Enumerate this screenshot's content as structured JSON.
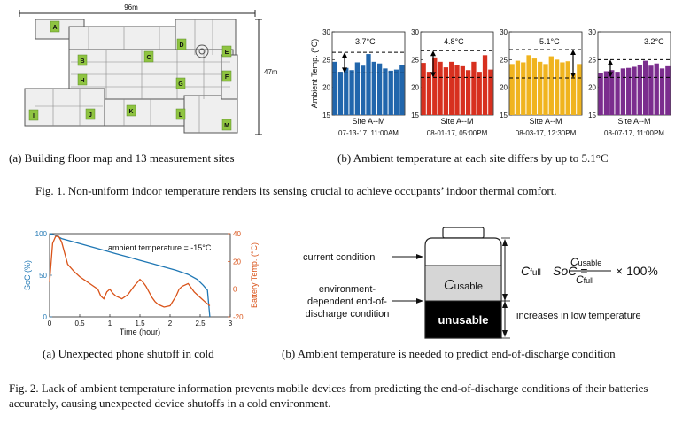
{
  "fig1": {
    "floorplan": {
      "width_label": "96m",
      "height_label": "47m",
      "sites": [
        "A",
        "B",
        "C",
        "D",
        "E",
        "F",
        "G",
        "H",
        "I",
        "J",
        "K",
        "L",
        "M"
      ]
    },
    "sub_a": "(a) Building floor map and 13 measurement sites",
    "sub_b": "(b) Ambient temperature at each site differs by up to 5.1°C",
    "caption": "Fig. 1.  Non-uniform indoor temperature renders its sensing crucial to achieve occupants’ indoor thermal comfort.",
    "ylabel": "Ambient Temp. (°C)"
  },
  "chart_data": [
    {
      "type": "bar",
      "title": "",
      "xlabel": "Site A--M",
      "ylabel": "Ambient Temp. (°C)",
      "ylim": [
        15,
        30
      ],
      "yticks": [
        15,
        20,
        25,
        30
      ],
      "categories": [
        "A",
        "B",
        "C",
        "D",
        "E",
        "F",
        "G",
        "H",
        "I",
        "J",
        "K",
        "L",
        "M"
      ],
      "values": [
        24.6,
        22.8,
        23.5,
        23.1,
        24.5,
        23.9,
        26.0,
        24.6,
        24.3,
        23.4,
        23.0,
        23.2,
        24.0
      ],
      "color": "#2166ac",
      "annotation": "3.7°C",
      "timestamp": "07-13-17, 11:00AM",
      "dashed_high": 26.3,
      "dashed_low": 22.6
    },
    {
      "type": "bar",
      "title": "",
      "xlabel": "Site A--M",
      "ylabel": "",
      "ylim": [
        15,
        30
      ],
      "yticks": [
        15,
        20,
        25,
        30
      ],
      "categories": [
        "A",
        "B",
        "C",
        "D",
        "E",
        "F",
        "G",
        "H",
        "I",
        "J",
        "K",
        "L",
        "M"
      ],
      "values": [
        24.4,
        22.8,
        25.4,
        24.6,
        23.6,
        24.6,
        24.0,
        23.8,
        23.1,
        24.6,
        22.8,
        25.8,
        23.2
      ],
      "color": "#d7301f",
      "annotation": "4.8°C",
      "timestamp": "08-01-17, 05:00PM",
      "dashed_high": 26.6,
      "dashed_low": 21.8
    },
    {
      "type": "bar",
      "title": "",
      "xlabel": "Site A--M",
      "ylabel": "",
      "ylim": [
        15,
        30
      ],
      "yticks": [
        15,
        20,
        25,
        30
      ],
      "categories": [
        "A",
        "B",
        "C",
        "D",
        "E",
        "F",
        "G",
        "H",
        "I",
        "J",
        "K",
        "L",
        "M"
      ],
      "values": [
        24.2,
        24.8,
        24.5,
        25.8,
        25.2,
        24.6,
        24.2,
        25.6,
        25.0,
        24.5,
        24.7,
        22.4,
        24.2
      ],
      "color": "#f0b41f",
      "annotation": "5.1°C",
      "timestamp": "08-03-17, 12:30PM",
      "dashed_high": 26.8,
      "dashed_low": 21.7
    },
    {
      "type": "bar",
      "title": "",
      "xlabel": "Site A--M",
      "ylabel": "",
      "ylim": [
        15,
        30
      ],
      "yticks": [
        15,
        20,
        25,
        30
      ],
      "categories": [
        "A",
        "B",
        "C",
        "D",
        "E",
        "F",
        "G",
        "H",
        "I",
        "J",
        "K",
        "L",
        "M"
      ],
      "values": [
        22.5,
        22.9,
        23.1,
        22.8,
        23.4,
        23.5,
        23.7,
        24.1,
        24.8,
        23.9,
        24.3,
        23.4,
        23.8
      ],
      "color": "#7b2d8e",
      "annotation": "3.2°C",
      "timestamp": "08-07-17, 11:00PM",
      "dashed_high": 25.0,
      "dashed_low": 21.8
    },
    {
      "type": "line",
      "title": "",
      "xlabel": "Time (hour)",
      "ylabel": "SoC (%)",
      "ylabel_right": "Battery Temp. (°C)",
      "xlim": [
        0,
        3
      ],
      "ylim": [
        0,
        100
      ],
      "ylim_right": [
        -20,
        40
      ],
      "xticks": [
        "0",
        "0.5",
        "1",
        "1.5",
        "2",
        "2.5",
        "3"
      ],
      "yticks": [
        "0",
        "50",
        "100"
      ],
      "yticks_right": [
        "-20",
        "0",
        "20",
        "40"
      ],
      "annotation": "ambient temperature = -15°C",
      "series": [
        {
          "name": "SoC",
          "axis": "left",
          "color": "#1f77b4",
          "x": [
            0,
            0.1,
            0.2,
            0.3,
            0.5,
            0.7,
            0.9,
            1.1,
            1.3,
            1.5,
            1.7,
            1.9,
            2.1,
            2.3,
            2.45,
            2.55,
            2.62,
            2.66
          ],
          "y": [
            100,
            98,
            94,
            92,
            88,
            84,
            80,
            76,
            72,
            68,
            64,
            60,
            56,
            51,
            45,
            38,
            32,
            0
          ]
        },
        {
          "name": "Battery Temp.",
          "axis": "right",
          "color": "#d95319",
          "x": [
            0,
            0.05,
            0.1,
            0.15,
            0.2,
            0.25,
            0.3,
            0.4,
            0.5,
            0.6,
            0.7,
            0.8,
            0.85,
            0.9,
            0.95,
            1.0,
            1.05,
            1.1,
            1.2,
            1.3,
            1.4,
            1.5,
            1.55,
            1.6,
            1.65,
            1.7,
            1.75,
            1.8,
            1.9,
            2.0,
            2.1,
            2.15,
            2.2,
            2.3,
            2.4,
            2.5,
            2.6,
            2.66
          ],
          "y": [
            5,
            33,
            38,
            38,
            34,
            26,
            18,
            13,
            9,
            6,
            3,
            0,
            -5,
            -7,
            -2,
            0,
            -3,
            -5,
            -7,
            -4,
            2,
            7,
            5,
            2,
            -2,
            -6,
            -9,
            -11,
            -13,
            -12,
            -5,
            0,
            2,
            4,
            -2,
            -6,
            -10,
            -12
          ]
        }
      ]
    }
  ],
  "fig2": {
    "sub_a": "(a) Unexpected phone shutoff in cold",
    "sub_b": "(b) Ambient temperature is needed to predict end-of-discharge condition",
    "caption": "Fig. 2.  Lack of ambient temperature information prevents mobile devices from predicting the end-of-discharge conditions of their batteries accurately, causing unexpected device shutoffs in a cold environment.",
    "battery": {
      "current_condition": "current condition",
      "end_condition_lines": [
        "environment-",
        "dependent end-of-",
        "discharge condition"
      ],
      "c_base": "C",
      "c_usable_sub": "usable",
      "unusable": "unusable",
      "c_full_sub": "full",
      "soc_lhs": "SoC =",
      "soc_rhs": "× 100%",
      "increases_text": "increases in low temperature"
    }
  }
}
